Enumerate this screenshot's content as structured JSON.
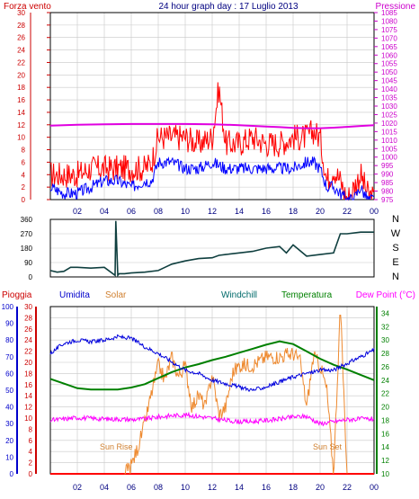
{
  "header": {
    "left_label": "Forza vento",
    "title": "24 hour graph day : 17 Luglio 2013",
    "right_label": "Pressione"
  },
  "wind_dir_labels": [
    "N",
    "W",
    "S",
    "E",
    "N"
  ],
  "bottom_header": {
    "pioggia": "Pioggia",
    "umidita": "Umidita",
    "solar": "Solar",
    "windchill": "Windchill",
    "temperatura": "Temperatura",
    "dewpoint": "Dew Point (°C)"
  },
  "annotations": {
    "sunrise": "Sun Rise",
    "sunset": "Sun Set"
  },
  "colors": {
    "frame": "#000000",
    "grid": "#c8c8c8",
    "wind_gust": "#ff0000",
    "wind_avg": "#0000ff",
    "pressure": "#e000e0",
    "wind_dir": "#0f3f3f",
    "rain": "#ff0000",
    "humidity": "#0000dd",
    "solar": "#ee8a30",
    "windchill": "#006a6a",
    "temperature": "#008000",
    "dewpoint": "#ff00ff",
    "axis_left": "#cc0000",
    "axis_right": "#cc00cc",
    "axis_humidity": "#0000cc",
    "axis_temp": "#008000",
    "x_labels": "#000080"
  },
  "chart_data": [
    {
      "type": "line",
      "name": "wind-pressure",
      "x_ticks": [
        "02",
        "04",
        "06",
        "08",
        "10",
        "12",
        "14",
        "16",
        "18",
        "20",
        "22",
        "00"
      ],
      "ylim": [
        0,
        30
      ],
      "y_ticks": [
        0,
        2,
        4,
        6,
        8,
        10,
        12,
        14,
        16,
        18,
        20,
        22,
        24,
        26,
        28,
        30
      ],
      "y2lim": [
        975,
        1085
      ],
      "y2_ticks": [
        975,
        980,
        985,
        990,
        995,
        1000,
        1005,
        1010,
        1015,
        1020,
        1025,
        1030,
        1035,
        1040,
        1045,
        1050,
        1055,
        1060,
        1065,
        1070,
        1075,
        1080,
        1085
      ],
      "series": [
        {
          "key": "gust",
          "x": [
            0,
            1,
            2,
            3,
            4,
            5,
            6,
            7,
            7.5,
            8,
            9,
            10,
            11,
            12,
            12.5,
            13,
            14,
            15,
            16,
            17,
            18,
            19,
            19.5,
            20,
            20.5,
            21,
            21.5,
            22,
            22.5,
            23,
            23.5,
            24
          ],
          "y": [
            4,
            4,
            4,
            5,
            5,
            5,
            5,
            5,
            6,
            10,
            10,
            10,
            9,
            10,
            18,
            9,
            9,
            10,
            9,
            9,
            10,
            10,
            11,
            10,
            3,
            5,
            3,
            0,
            2,
            4,
            1,
            0
          ]
        },
        {
          "key": "avg",
          "x": [
            0,
            1,
            2,
            3,
            4,
            5,
            6,
            7,
            7.5,
            8,
            9,
            10,
            11,
            12,
            13,
            14,
            15,
            16,
            17,
            18,
            19,
            19.5,
            20,
            20.5,
            21,
            21.5,
            22,
            22.5,
            23,
            23.5,
            24
          ],
          "y": [
            2,
            1,
            1,
            2,
            3,
            3,
            2,
            3,
            3,
            6,
            6,
            5,
            5,
            6,
            5,
            5,
            5,
            5,
            5,
            5,
            6,
            6,
            5,
            2,
            2,
            1,
            0,
            0,
            2,
            0,
            0
          ]
        },
        {
          "key": "pressure",
          "x": [
            0,
            2,
            4,
            6,
            8,
            10,
            12,
            14,
            16,
            17,
            18,
            19,
            20,
            21,
            22,
            23,
            24
          ],
          "y": [
            1018.5,
            1019,
            1019.3,
            1019.5,
            1019.5,
            1019.5,
            1019.3,
            1018.8,
            1018,
            1017.6,
            1017.2,
            1017,
            1017,
            1017.3,
            1017.8,
            1018.3,
            1018.8
          ]
        }
      ]
    },
    {
      "type": "line",
      "name": "wind-direction",
      "x_ticks": [],
      "ylim": [
        0,
        360
      ],
      "y_ticks": [
        0,
        90,
        180,
        270,
        360
      ],
      "series": [
        {
          "key": "direction",
          "x": [
            0,
            0.5,
            1,
            1.5,
            2,
            3,
            4,
            4.8,
            4.85,
            5,
            5.1,
            5.5,
            6,
            7,
            8,
            8.5,
            9,
            10,
            11,
            12,
            12.5,
            13,
            14,
            15,
            16,
            17,
            17.5,
            18,
            19,
            20,
            21,
            21.5,
            22,
            23,
            24
          ],
          "y": [
            40,
            30,
            35,
            60,
            60,
            55,
            60,
            10,
            350,
            10,
            20,
            20,
            25,
            30,
            40,
            60,
            80,
            100,
            115,
            120,
            135,
            140,
            150,
            160,
            180,
            190,
            150,
            200,
            130,
            140,
            150,
            270,
            270,
            280,
            280
          ]
        }
      ]
    },
    {
      "type": "line",
      "name": "temperature-humidity-solar",
      "x_ticks": [
        "02",
        "04",
        "06",
        "08",
        "10",
        "12",
        "14",
        "16",
        "18",
        "20",
        "22",
        "00"
      ],
      "y_rain": {
        "ylim": [
          0,
          30
        ],
        "ticks": [
          0,
          2,
          4,
          6,
          8,
          10,
          12,
          14,
          16,
          18,
          20,
          22,
          24,
          26,
          28,
          30
        ]
      },
      "y_humidity": {
        "ylim": [
          0,
          100
        ],
        "ticks": [
          0,
          10,
          20,
          30,
          40,
          50,
          60,
          70,
          80,
          90,
          100
        ]
      },
      "y_temp": {
        "ylim": [
          10,
          35
        ],
        "ticks": [
          10,
          12,
          14,
          16,
          18,
          20,
          22,
          24,
          26,
          28,
          30,
          32,
          34
        ]
      },
      "series": [
        {
          "key": "rain",
          "x": [
            0,
            24
          ],
          "y": [
            0,
            0
          ]
        },
        {
          "key": "humidity",
          "x": [
            0,
            1,
            2,
            3,
            4,
            5,
            6,
            7,
            8,
            9,
            10,
            11,
            12,
            13,
            14,
            15,
            16,
            17,
            18,
            19,
            20,
            21,
            22,
            23,
            24
          ],
          "y": [
            72,
            78,
            80,
            79,
            80,
            82,
            81,
            76,
            72,
            67,
            62,
            60,
            56,
            54,
            52,
            50,
            52,
            55,
            58,
            60,
            62,
            62,
            66,
            70,
            74
          ]
        },
        {
          "key": "solar",
          "x": [
            5.5,
            6,
            6.5,
            7,
            7.5,
            8,
            8.5,
            9,
            9.5,
            10,
            10.5,
            11,
            11.5,
            12,
            12.5,
            13,
            13.5,
            14,
            15,
            16,
            17,
            18,
            18.5,
            19,
            19.5,
            20,
            20.5,
            21,
            21.5,
            22
          ],
          "y": [
            0,
            50,
            160,
            300,
            480,
            650,
            560,
            700,
            580,
            650,
            400,
            470,
            400,
            600,
            350,
            400,
            600,
            650,
            650,
            700,
            700,
            720,
            680,
            400,
            700,
            650,
            500,
            0,
            1000,
            0
          ]
        },
        {
          "key": "windchill",
          "x": [
            0,
            1,
            2,
            3,
            4,
            5,
            6,
            7,
            8,
            9,
            10,
            11,
            12,
            13,
            14,
            15,
            16,
            17,
            18,
            19,
            20,
            21,
            22,
            23,
            24
          ],
          "y": [
            24.2,
            23.5,
            22.8,
            22.6,
            22.6,
            22.6,
            22.9,
            23.4,
            24.3,
            25.2,
            25.9,
            26.4,
            27,
            27.5,
            28.1,
            28.7,
            29.3,
            29.8,
            29.4,
            28.3,
            27.2,
            26.3,
            25.6,
            24.8,
            24
          ]
        },
        {
          "key": "temperature",
          "x": [
            0,
            1,
            2,
            3,
            4,
            5,
            6,
            7,
            8,
            9,
            10,
            11,
            12,
            13,
            14,
            15,
            16,
            17,
            18,
            19,
            20,
            21,
            22,
            23,
            24
          ],
          "y": [
            24.2,
            23.5,
            22.8,
            22.6,
            22.6,
            22.6,
            22.9,
            23.4,
            24.3,
            25.2,
            25.9,
            26.4,
            27,
            27.5,
            28.1,
            28.7,
            29.3,
            29.8,
            29.4,
            28.3,
            27.2,
            26.3,
            25.6,
            24.8,
            24
          ]
        },
        {
          "key": "dewpoint",
          "x": [
            0,
            1,
            2,
            3,
            4,
            5,
            6,
            7,
            8,
            9,
            10,
            11,
            12,
            13,
            14,
            15,
            16,
            17,
            18,
            19,
            20,
            21,
            22,
            23,
            24
          ],
          "y": [
            18,
            18.2,
            18.4,
            18.3,
            18.2,
            18.2,
            18.1,
            18.2,
            18.5,
            18.7,
            18.8,
            18.6,
            18.3,
            18,
            17.8,
            17.8,
            18,
            18.2,
            18.5,
            18.6,
            17.5,
            17.8,
            18.1,
            18.2,
            18.2
          ]
        }
      ]
    }
  ]
}
